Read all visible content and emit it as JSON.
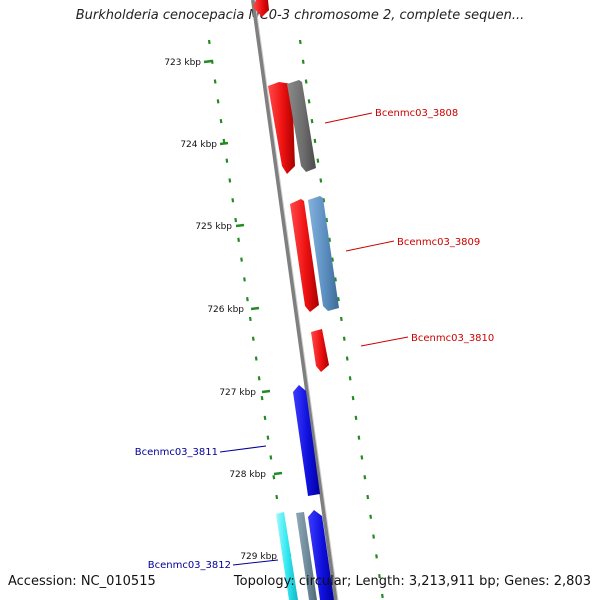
{
  "title": "Burkholderia cenocepacia MC0-3 chromosome 2, complete sequen...",
  "accession_text": "Accession: NC_010515",
  "summary_text": "Topology: circular; Length: 3,213,911 bp; Genes: 2,803",
  "ticks": [
    "723 kbp",
    "724 kbp",
    "725 kbp",
    "726 kbp",
    "727 kbp",
    "728 kbp",
    "729 kbp"
  ],
  "gene_labels": [
    {
      "text": "Bcenmc03_3808",
      "color": "#cc0000"
    },
    {
      "text": "Bcenmc03_3809",
      "color": "#cc0000"
    },
    {
      "text": "Bcenmc03_3810",
      "color": "#cc0000"
    },
    {
      "text": "Bcenmc03_3811",
      "color": "#000099"
    },
    {
      "text": "Bcenmc03_3812",
      "color": "#000099"
    }
  ],
  "colors": {
    "backbone": "#888888",
    "tick_dots": "#228b22",
    "gene_red": "#ee1111",
    "gene_gray": "#707070",
    "gene_steel": "#5b8fc0",
    "gene_blue": "#1010dd",
    "gene_cyan": "#33e8f0",
    "gene_slate": "#6e8a9a"
  }
}
